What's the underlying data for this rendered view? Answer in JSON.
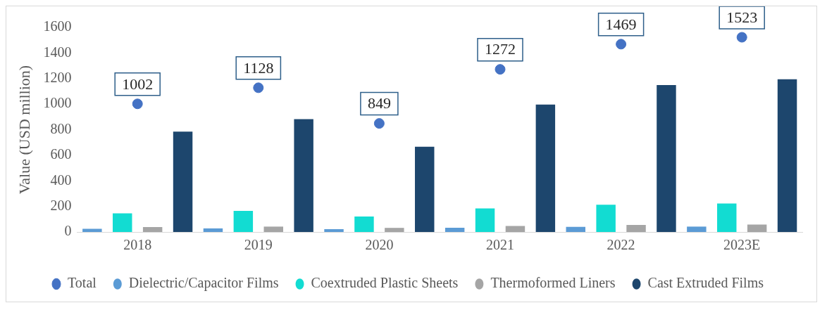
{
  "chart_data": {
    "type": "bar",
    "ylabel": "Value (USD million)",
    "categories": [
      "2018",
      "2019",
      "2020",
      "2021",
      "2022",
      "2023E"
    ],
    "series": [
      {
        "name": "Dielectric/Capacitor Films",
        "color": "#5b9bd5",
        "values": [
          25,
          28,
          22,
          33,
          40,
          42
        ]
      },
      {
        "name": "Coextruded Plastic Sheets",
        "color": "#12dcd2",
        "values": [
          146,
          165,
          121,
          184,
          213,
          222
        ]
      },
      {
        "name": "Thermoformed Liners",
        "color": "#a5a5a5",
        "values": [
          38,
          42,
          32,
          47,
          55,
          58
        ]
      },
      {
        "name": "Cast Extruded Films",
        "color": "#1d466d",
        "values": [
          785,
          883,
          667,
          997,
          1149,
          1194
        ]
      },
      {
        "name": "Total",
        "type": "scatter",
        "color": "#4472c4",
        "values": [
          1002,
          1128,
          849,
          1272,
          1469,
          1523
        ],
        "value_labels": [
          "1002",
          "1128",
          "849",
          "1272",
          "1469",
          "1523"
        ]
      }
    ],
    "ylim": [
      0,
      1600
    ],
    "yticks": [
      0,
      200,
      400,
      600,
      800,
      1000,
      1200,
      1400,
      1600
    ],
    "grid": false,
    "legend": "bottom",
    "marker": "circle"
  }
}
